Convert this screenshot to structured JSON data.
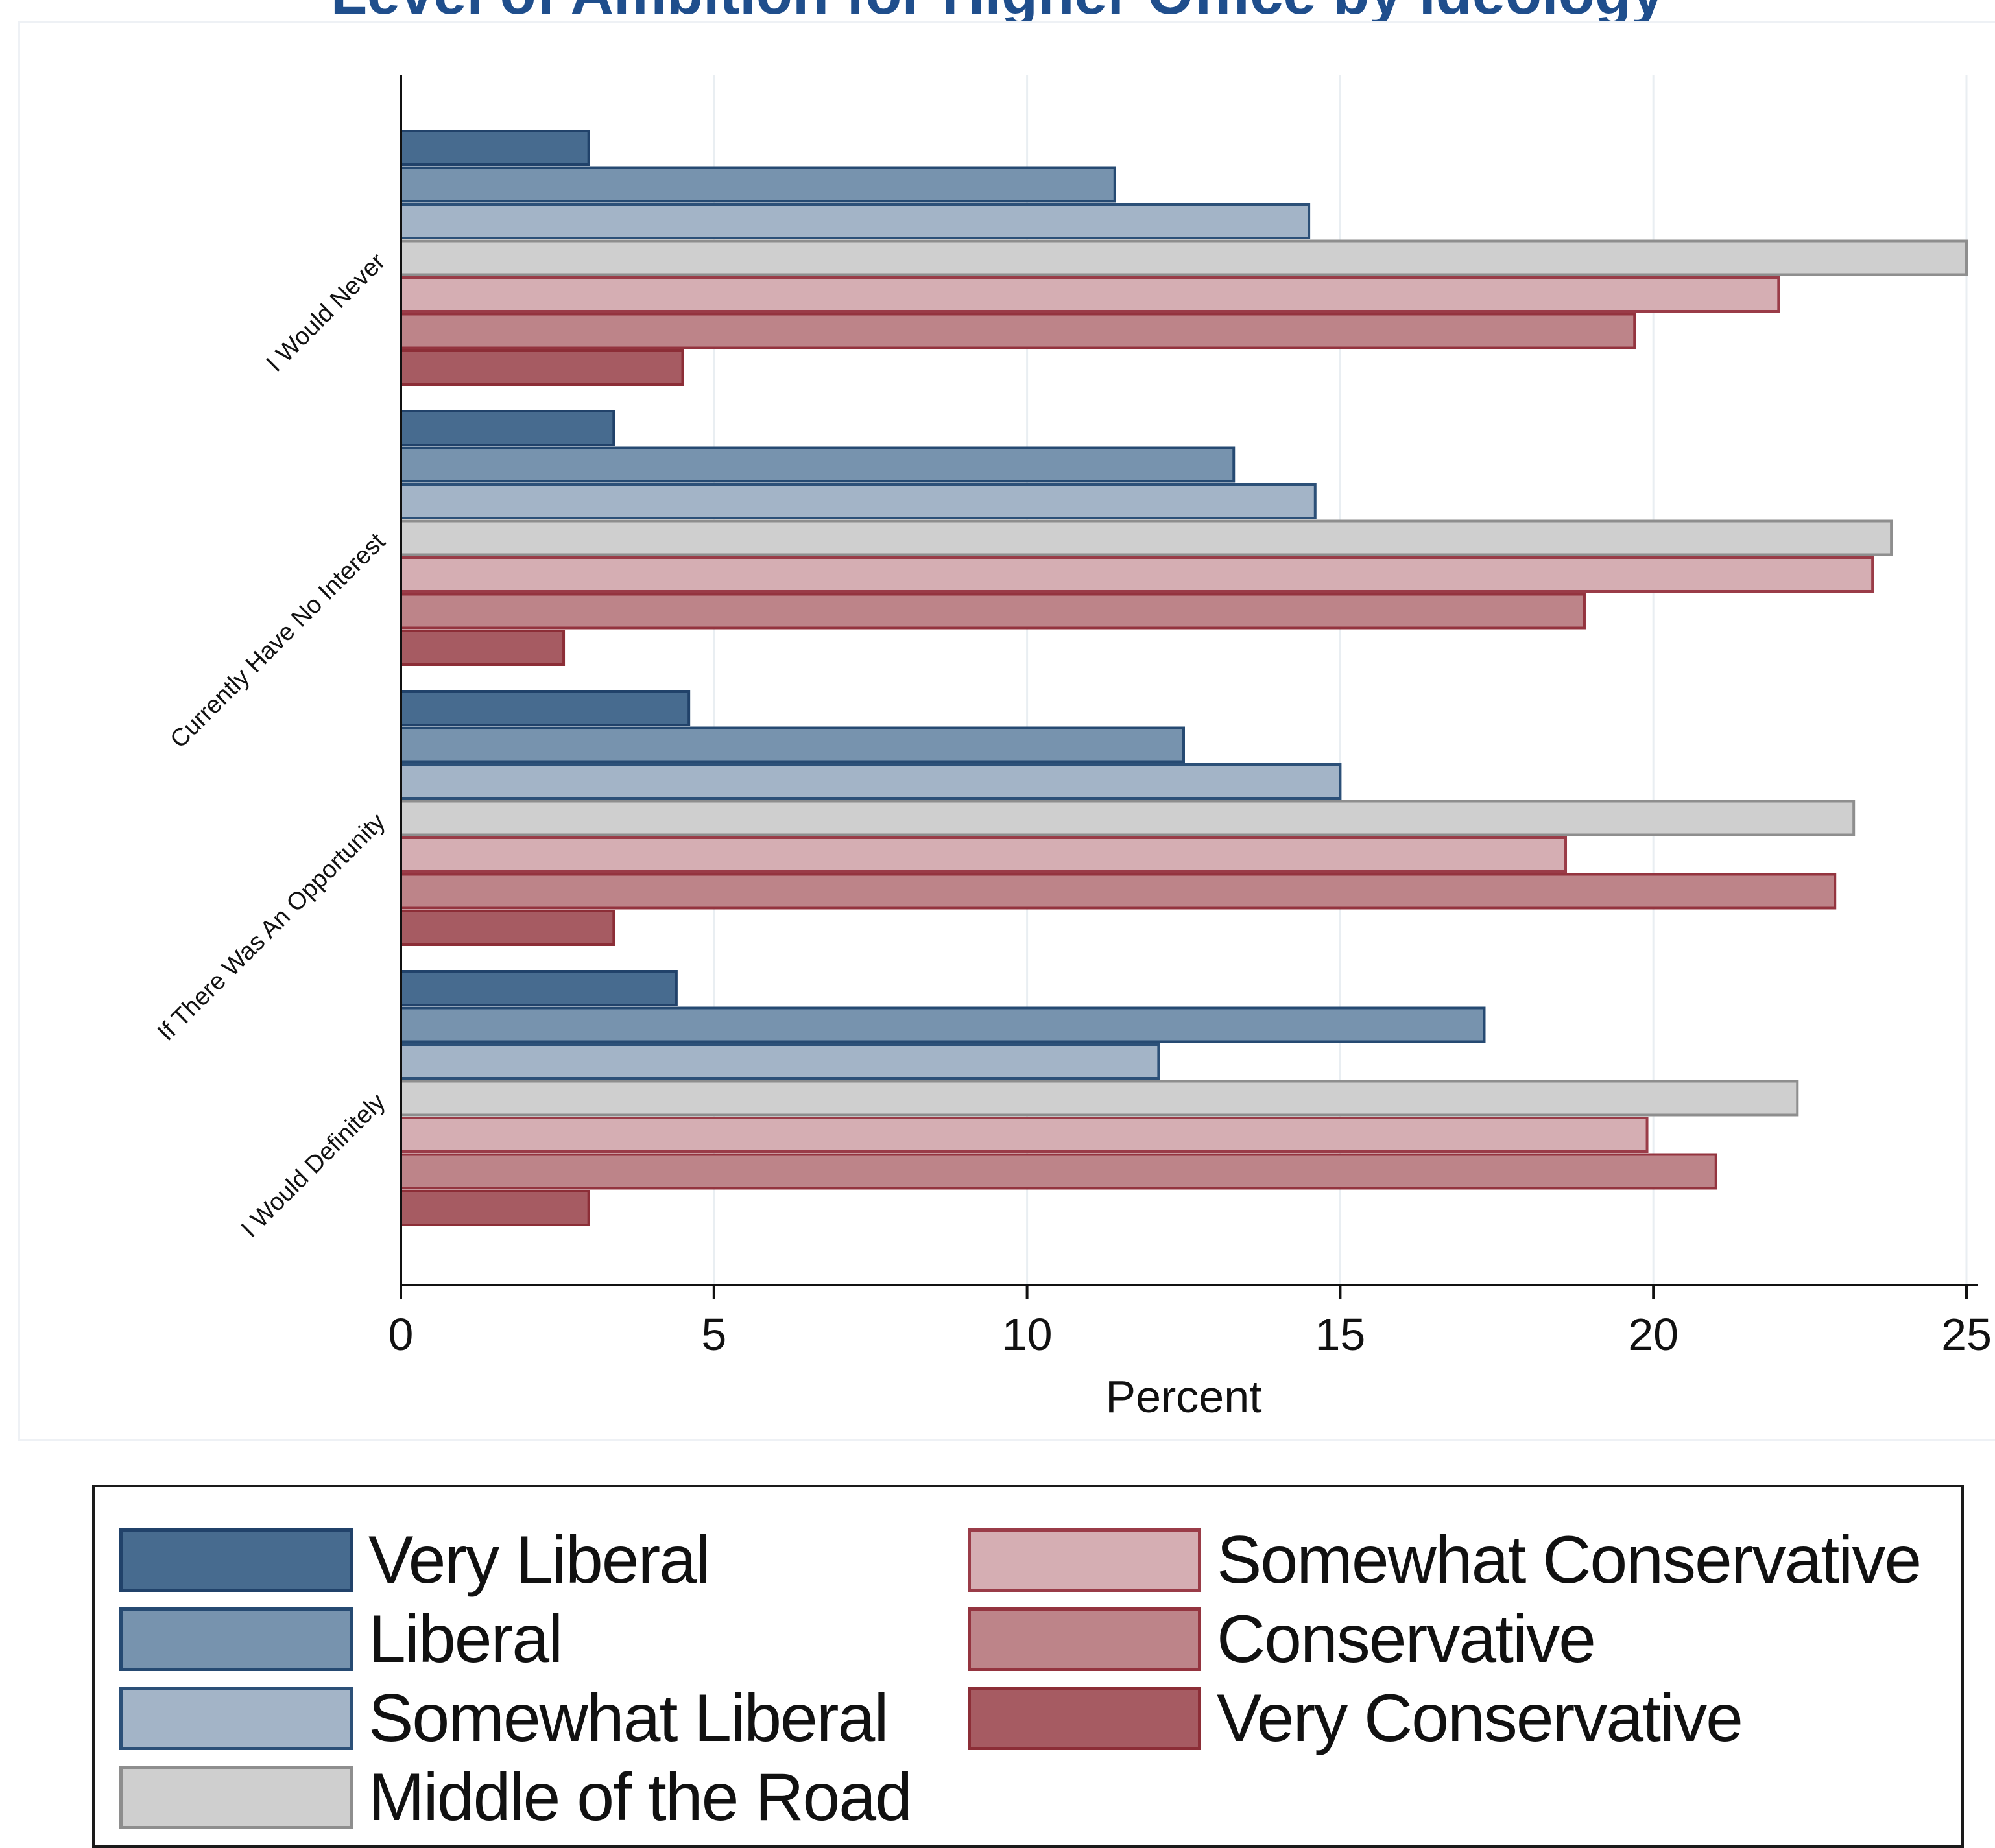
{
  "chart_data": {
    "type": "bar",
    "orientation": "horizontal",
    "title": "Level of Ambition for Higher Office by Ideology",
    "xlabel": "Percent",
    "ylabel": "",
    "xlim": [
      0,
      25
    ],
    "xticks": [
      0,
      5,
      10,
      15,
      20,
      25
    ],
    "grid": true,
    "legend_position": "bottom",
    "categories": [
      "I Would Never",
      "Currently Have No Interest",
      "If There Was An Opportunity",
      "I Would Definitely"
    ],
    "series": [
      {
        "name": "Very Liberal",
        "fill": "#476b8f",
        "stroke": "#21426a",
        "values": [
          3.0,
          3.4,
          4.6,
          4.4
        ]
      },
      {
        "name": "Liberal",
        "fill": "#7793ae",
        "stroke": "#264a72",
        "values": [
          11.4,
          13.3,
          12.5,
          17.3
        ]
      },
      {
        "name": "Somewhat Liberal",
        "fill": "#a3b4c7",
        "stroke": "#2c5078",
        "values": [
          14.5,
          14.6,
          15.0,
          12.1
        ]
      },
      {
        "name": "Middle of the Road",
        "fill": "#cfcfcf",
        "stroke": "#8e8e8e",
        "values": [
          25.0,
          23.8,
          23.2,
          22.3
        ]
      },
      {
        "name": "Somewhat Conservative",
        "fill": "#d5aeb3",
        "stroke": "#9a3c48",
        "values": [
          22.0,
          23.5,
          18.6,
          19.9
        ]
      },
      {
        "name": "Conservative",
        "fill": "#bd8489",
        "stroke": "#94343f",
        "values": [
          19.7,
          18.9,
          22.9,
          21.0
        ]
      },
      {
        "name": "Very Conservative",
        "fill": "#a65b62",
        "stroke": "#8c2e37",
        "values": [
          4.5,
          2.6,
          3.4,
          3.0
        ]
      }
    ]
  }
}
